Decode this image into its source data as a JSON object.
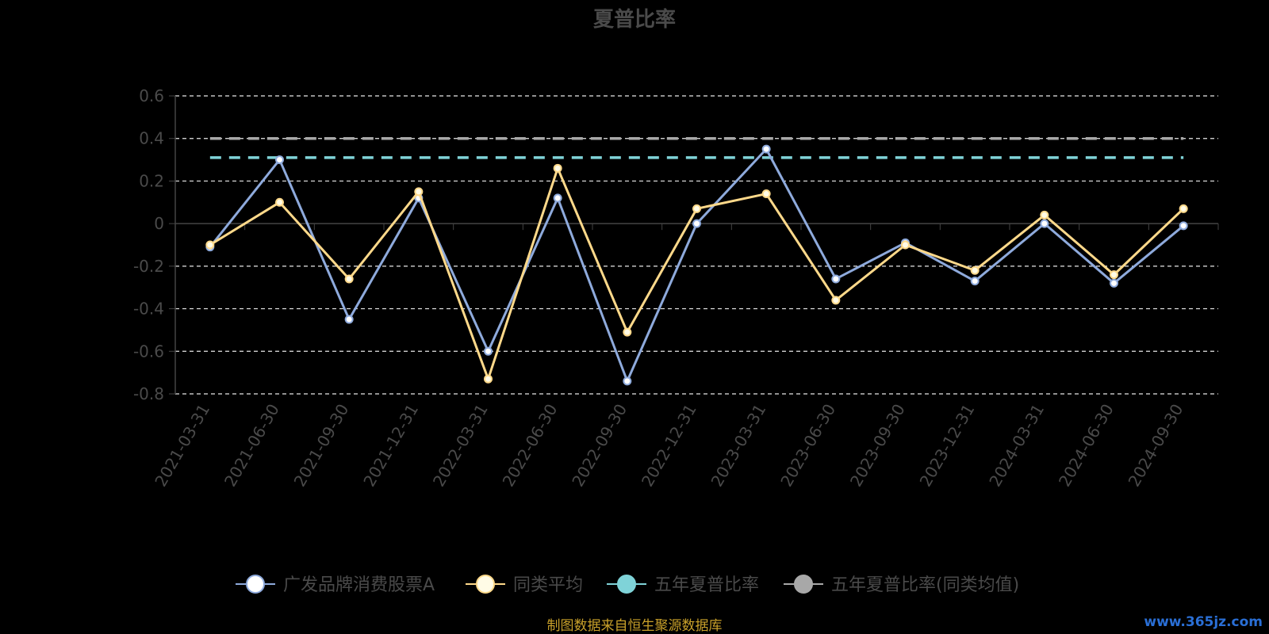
{
  "chart_data": {
    "type": "line",
    "title": "夏普比率",
    "categories": [
      "2021-03-31",
      "2021-06-30",
      "2021-09-30",
      "2021-12-31",
      "2022-03-31",
      "2022-06-30",
      "2022-09-30",
      "2022-12-31",
      "2023-03-31",
      "2023-06-30",
      "2023-09-30",
      "2023-12-31",
      "2024-03-31",
      "2024-06-30",
      "2024-09-30"
    ],
    "y_ticks": [
      0.6,
      0.4,
      0.2,
      0,
      -0.2,
      -0.4,
      -0.6,
      -0.8
    ],
    "y_tick_labels": [
      "0.6",
      "0.4",
      "0.2",
      "0",
      "-0.2",
      "-0.4",
      "-0.6",
      "-0.8"
    ],
    "ylim": [
      -0.8,
      0.6
    ],
    "grid": true,
    "legend_position": "bottom",
    "series": [
      {
        "name": "广发品牌消费股票A",
        "color": "#8eaadc",
        "marker_fill": "#ffffff",
        "values": [
          -0.11,
          0.3,
          -0.45,
          0.12,
          -0.6,
          0.12,
          -0.74,
          0.0,
          0.35,
          -0.26,
          -0.09,
          -0.27,
          0.0,
          -0.28,
          -0.01
        ]
      },
      {
        "name": "同类平均",
        "color": "#ffd98a",
        "marker_fill": "#fffbe6",
        "values": [
          -0.1,
          0.1,
          -0.26,
          0.15,
          -0.73,
          0.26,
          -0.51,
          0.07,
          0.14,
          -0.36,
          -0.1,
          -0.22,
          0.04,
          -0.24,
          0.07
        ]
      },
      {
        "name": "五年夏普比率",
        "color": "#7fd3d8",
        "constant": 0.31
      },
      {
        "name": "五年夏普比率(同类均值)",
        "color": "#a8a8a8",
        "constant": 0.4
      }
    ]
  },
  "footer": {
    "source": "制图数据来自恒生聚源数据库",
    "watermark": "www.365jz.com"
  }
}
